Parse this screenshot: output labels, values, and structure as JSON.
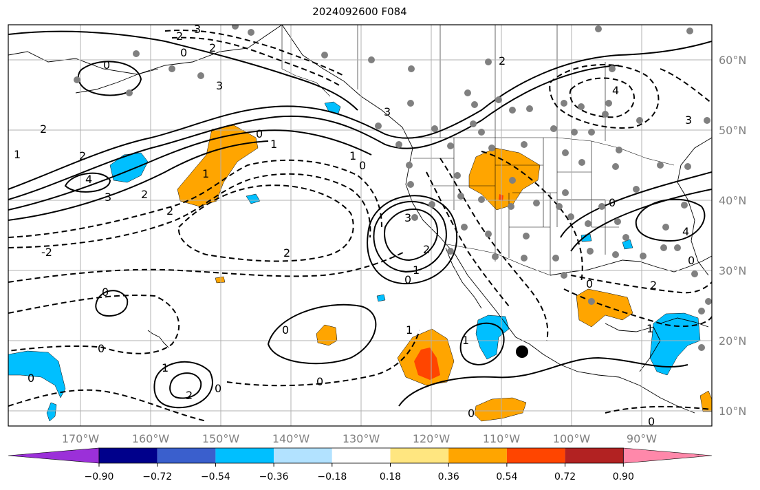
{
  "title": "2024092600 F084",
  "lat_labels": [
    "60°N",
    "50°N",
    "40°N",
    "30°N",
    "20°N",
    "10°N"
  ],
  "lon_labels": [
    "170°W",
    "160°W",
    "150°W",
    "140°W",
    "130°W",
    "120°W",
    "110°W",
    "100°W",
    "90°W"
  ],
  "colorbar": {
    "colors": [
      "#9b30d9",
      "#00008b",
      "#3a5fcd",
      "#00bfff",
      "#b2e2ff",
      "#ffffff",
      "#ffe680",
      "#ffa500",
      "#ff4500",
      "#b22222",
      "#ff88aa"
    ],
    "tick_labels": [
      "−0.90",
      "−0.72",
      "−0.54",
      "−0.36",
      "−0.18",
      "0.18",
      "0.36",
      "0.54",
      "0.72",
      "0.90"
    ]
  },
  "contour_labels": [
    "0",
    "1",
    "2",
    "3",
    "4",
    "-2",
    "-1",
    "-4",
    "-3"
  ],
  "colors": {
    "orange": "#ffa500",
    "red_orange": "#ff4500",
    "light_blue": "#00bfff",
    "grid": "#b0b0b0",
    "station_dot": "#808080"
  }
}
